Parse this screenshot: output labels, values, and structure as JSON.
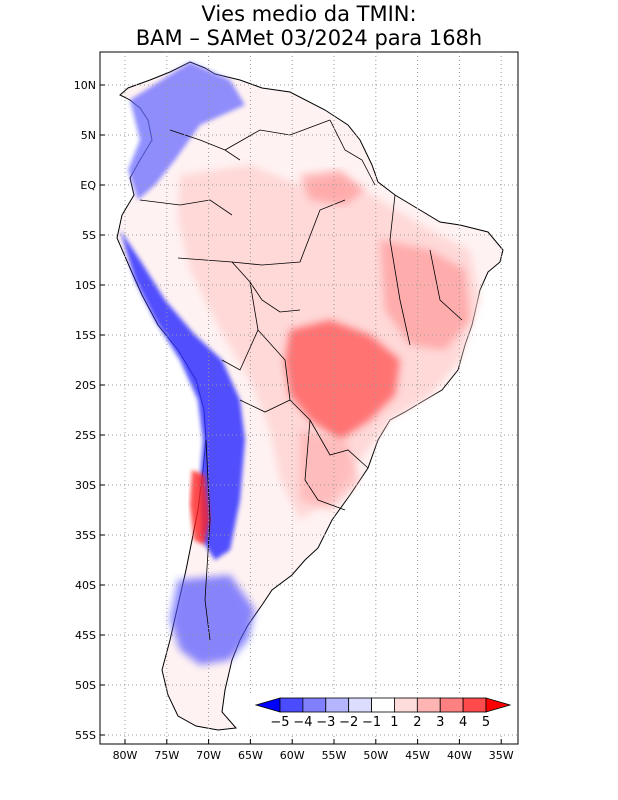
{
  "title": {
    "line1": "Vies medio da TMIN:",
    "line2": "BAM – SAMet 03/2024  para 168h"
  },
  "axes": {
    "lat_labels": [
      "10N",
      "5N",
      "EQ",
      "5S",
      "10S",
      "15S",
      "20S",
      "25S",
      "30S",
      "35S",
      "40S",
      "45S",
      "50S",
      "55S"
    ],
    "lon_labels": [
      "80W",
      "75W",
      "70W",
      "65W",
      "60W",
      "55W",
      "50W",
      "45W",
      "40W",
      "35W"
    ],
    "grid": "dotted"
  },
  "colorbar": {
    "labels": [
      "−5",
      "−4",
      "−3",
      "−2",
      "−1",
      "1",
      "2",
      "3",
      "4",
      "5"
    ],
    "colors": [
      "#0000ff",
      "#4b4bff",
      "#8080ff",
      "#b4b4ff",
      "#dcdcff",
      "#ffffff",
      "#ffdcdc",
      "#ffb4b4",
      "#ff8080",
      "#ff4b4b",
      "#ff0000"
    ]
  },
  "map": {
    "region": "South America",
    "variable": "TMIN bias",
    "positive_color": "#ff4b4b",
    "negative_color": "#2020ff"
  }
}
